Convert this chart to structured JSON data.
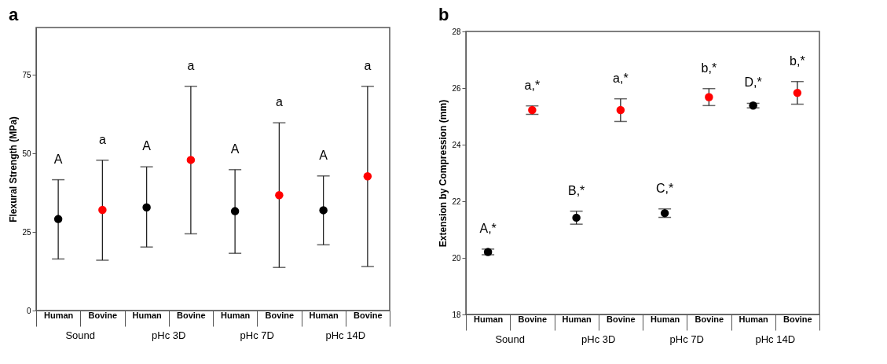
{
  "chart_data": [
    {
      "type": "scatter",
      "title": "a",
      "ylabel": "Flexural Strength (MPa)",
      "categories": [
        "Human",
        "Bovine",
        "Human",
        "Bovine",
        "Human",
        "Bovine",
        "Human",
        "Bovine"
      ],
      "ylim": [
        0,
        90
      ],
      "yticks": [
        0,
        25,
        50,
        75
      ],
      "marker": "circle",
      "series": [
        {
          "color": "#000000",
          "values": [
            29.1,
            null,
            32.8,
            null,
            31.6,
            null,
            31.9,
            null
          ],
          "errors": [
            [
              16.4,
              41.6
            ],
            null,
            [
              20.2,
              45.7
            ],
            null,
            [
              18.2,
              44.8
            ],
            null,
            [
              20.9,
              42.8
            ],
            null
          ]
        },
        {
          "color": "#ff0000",
          "values": [
            null,
            32.0,
            null,
            47.9,
            null,
            36.7,
            null,
            42.7
          ],
          "errors": [
            null,
            [
              16.0,
              47.8
            ],
            null,
            [
              24.4,
              71.3
            ],
            null,
            [
              13.7,
              59.7
            ],
            null,
            [
              14.0,
              71.3
            ]
          ]
        }
      ],
      "annotations": [
        "A",
        "a",
        "A",
        "a",
        "A",
        "a",
        "A",
        "a",
        "Sound",
        "pHc  3D",
        "pHc  7D",
        "pHc  14D"
      ]
    },
    {
      "type": "scatter",
      "title": "b",
      "ylabel": "Extension by Compression (mm)",
      "categories": [
        "Human",
        "Bovine",
        "Human",
        "Bovine",
        "Human",
        "Bovine",
        "Human",
        "Bovine"
      ],
      "ylim": [
        18,
        28
      ],
      "yticks": [
        18,
        20,
        22,
        24,
        26,
        28
      ],
      "marker": "circle",
      "series": [
        {
          "color": "#000000",
          "values": [
            20.21,
            null,
            21.42,
            null,
            21.58,
            null,
            25.38,
            null
          ],
          "errors": [
            0.1,
            null,
            0.23,
            null,
            0.15,
            null,
            0.08,
            null
          ]
        },
        {
          "color": "#ff0000",
          "values": [
            null,
            25.22,
            null,
            25.22,
            null,
            25.68,
            null,
            25.83
          ],
          "errors": [
            null,
            0.15,
            null,
            0.4,
            null,
            0.3,
            null,
            0.4
          ]
        }
      ],
      "annotations": [
        "A,*",
        "a,*",
        "B,*",
        "a,*",
        "C,*",
        "b,*",
        "D,*",
        "b,*",
        "Sound",
        "pHc  3D",
        "pHc  7D",
        "pHc  14D"
      ]
    }
  ]
}
